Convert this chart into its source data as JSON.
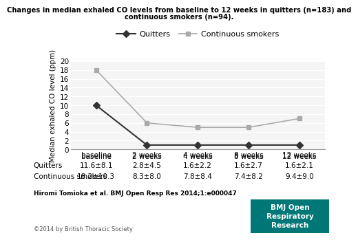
{
  "title_line1": "Changes in median exhaled CO levels from baseline to 12 weeks in quitters (n=183) and",
  "title_line2": "continuous smokers (n=94).",
  "ylabel": "Median exhaled CO level (ppm)",
  "x_labels": [
    "baseline",
    "2 weeks",
    "4 weeks",
    "8 weeks",
    "12 weeks"
  ],
  "x_values": [
    0,
    1,
    2,
    3,
    4
  ],
  "quitters_values": [
    10,
    1,
    1,
    1,
    1
  ],
  "smokers_values": [
    18,
    6,
    5,
    5,
    7
  ],
  "quitters_color": "#333333",
  "smokers_color": "#aaaaaa",
  "ylim": [
    0,
    20
  ],
  "yticks": [
    0,
    2,
    4,
    6,
    8,
    10,
    12,
    14,
    16,
    18,
    20
  ],
  "legend_quitters": "Quitters",
  "legend_smokers": "Continuous smokers",
  "table_header": [
    "",
    "baseline",
    "2 weeks",
    "4 weeks",
    "8 weeks",
    "12 weeks"
  ],
  "table_rows": [
    [
      "Quitters",
      "11.6±8.1",
      "2.8±4.5",
      "1.6±2.2",
      "1.6±2.7",
      "1.6±2.1"
    ],
    [
      "Continuous smokers",
      "18.2±10.3",
      "8.3±8.0",
      "7.8±8.4",
      "7.4±8.2",
      "9.4±9.0"
    ]
  ],
  "citation": "Hiromi Tomioka et al. BMJ Open Resp Res 2014;1:e000047",
  "copyright": "©2014 by British Thoracic Society",
  "bmj_box_color": "#007777",
  "bmj_box_text": "BMJ Open\nRespiratory\nResearch",
  "bg_color": "#f5f5f5"
}
